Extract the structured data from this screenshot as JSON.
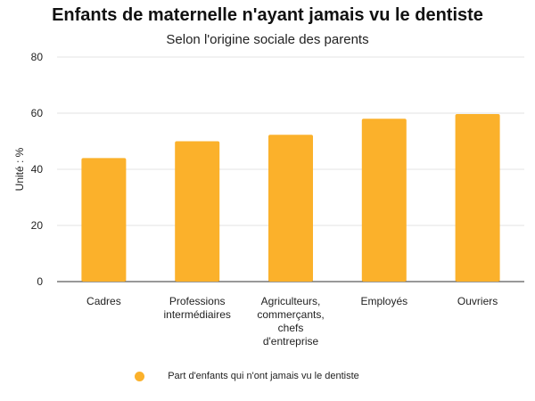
{
  "chart_data": {
    "type": "bar",
    "title": "Enfants de maternelle n'ayant jamais vu le dentiste",
    "subtitle": "Selon l'origine sociale des parents",
    "xlabel": "",
    "ylabel": "Unité : %",
    "ylim": [
      0,
      80
    ],
    "yticks": [
      "0",
      "20",
      "40",
      "60",
      "80"
    ],
    "categories": [
      "Cadres",
      "Professions\nintermédiaires",
      "Agriculteurs,\ncommerçants,\nchefs\nd'entreprise",
      "Employés",
      "Ouvriers"
    ],
    "series": [
      {
        "name": "Part d'enfants qui n'ont jamais vu le dentiste",
        "values": [
          44,
          50,
          52.3,
          58,
          59.7
        ]
      }
    ],
    "color": "#FBB12B",
    "grid": true,
    "legend_position": "bottom"
  }
}
